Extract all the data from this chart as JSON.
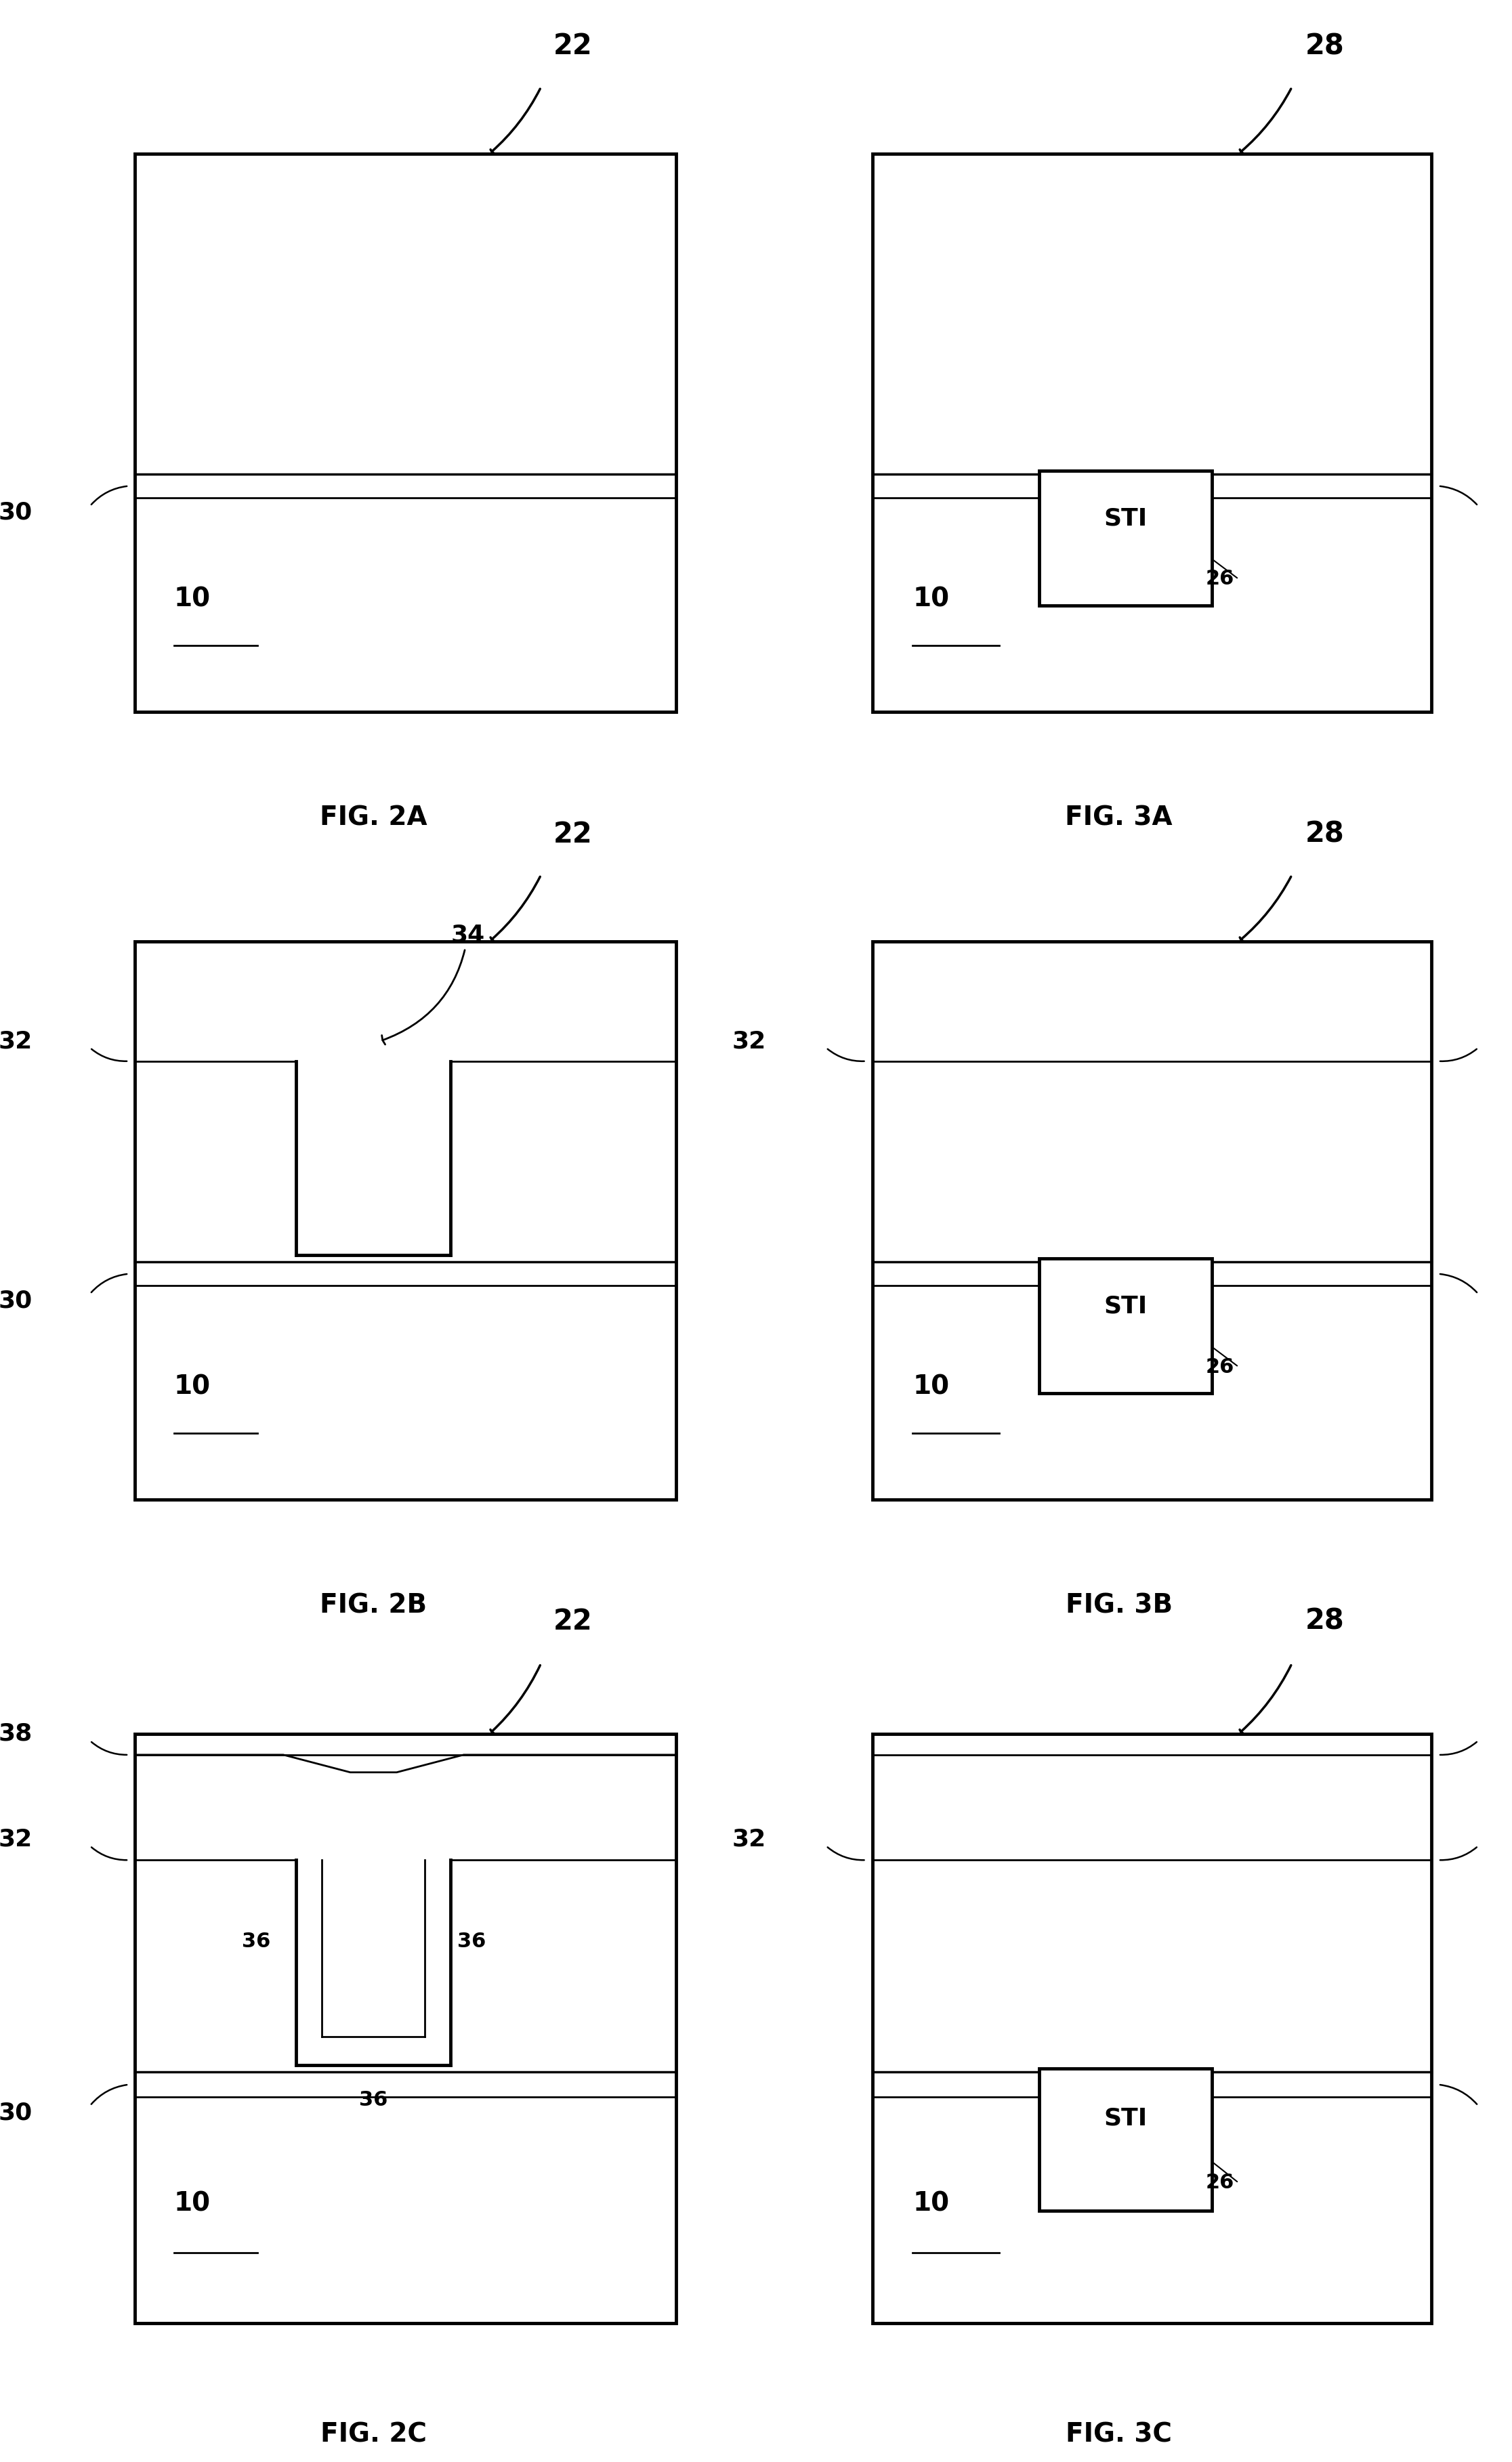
{
  "fig_width": 22.32,
  "fig_height": 36.35,
  "bg_color": "#ffffff",
  "line_color": "#000000",
  "figures": [
    {
      "name": "FIG. 2A",
      "col": 0,
      "row": 0,
      "arrow_label": "22",
      "arrow_side": "right",
      "has_layer32": false,
      "has_layer38": false,
      "has_trench": false,
      "has_sti": false,
      "has_film36": false,
      "label_30_side": "left",
      "label_32": false,
      "label_38": false,
      "label_34": false,
      "label_36": false,
      "label_26": false
    },
    {
      "name": "FIG. 3A",
      "col": 1,
      "row": 0,
      "arrow_label": "28",
      "arrow_side": "center",
      "has_layer32": false,
      "has_layer38": false,
      "has_trench": false,
      "has_sti": true,
      "has_film36": false,
      "label_30_side": "right",
      "label_32": false,
      "label_38": false,
      "label_34": false,
      "label_36": false,
      "label_26": true
    },
    {
      "name": "FIG. 2B",
      "col": 0,
      "row": 1,
      "arrow_label": "22",
      "arrow_side": "right",
      "has_layer32": true,
      "has_layer38": false,
      "has_trench": true,
      "has_sti": false,
      "has_film36": false,
      "label_30_side": "left",
      "label_32": true,
      "label_38": false,
      "label_34": true,
      "label_36": false,
      "label_26": false
    },
    {
      "name": "FIG. 3B",
      "col": 1,
      "row": 1,
      "arrow_label": "28",
      "arrow_side": "center",
      "has_layer32": true,
      "has_layer38": false,
      "has_trench": false,
      "has_sti": true,
      "has_film36": false,
      "label_30_side": "right",
      "label_32": true,
      "label_38": false,
      "label_34": false,
      "label_36": false,
      "label_26": true
    },
    {
      "name": "FIG. 2C",
      "col": 0,
      "row": 2,
      "arrow_label": "22",
      "arrow_side": "right",
      "has_layer32": true,
      "has_layer38": true,
      "has_trench": true,
      "has_sti": false,
      "has_film36": true,
      "label_30_side": "left",
      "label_32": true,
      "label_38": true,
      "label_34": false,
      "label_36": true,
      "label_26": false
    },
    {
      "name": "FIG. 3C",
      "col": 1,
      "row": 2,
      "arrow_label": "28",
      "arrow_side": "center",
      "has_layer32": true,
      "has_layer38": true,
      "has_trench": false,
      "has_sti": true,
      "has_film36": false,
      "label_30_side": "right",
      "label_32": true,
      "label_38": true,
      "label_34": false,
      "label_36": false,
      "label_26": true
    }
  ]
}
